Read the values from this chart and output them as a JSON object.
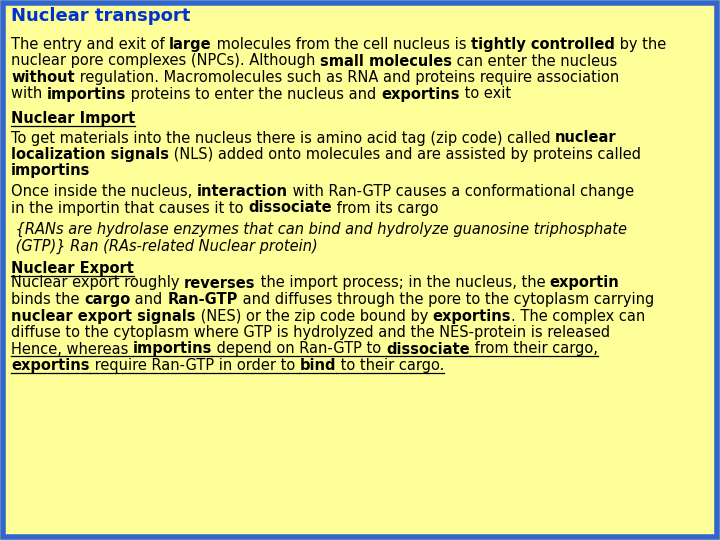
{
  "bg_color": "#FFFF99",
  "border_color": "#3366CC",
  "title_color": "#0033CC",
  "text_color": "#000000",
  "figsize": [
    7.2,
    5.4
  ],
  "dpi": 100,
  "title": "Nuclear transport",
  "para1_lines": [
    [
      {
        "text": "The entry and exit of ",
        "bold": false,
        "italic": false
      },
      {
        "text": "large",
        "bold": true,
        "italic": false
      },
      {
        "text": " molecules from the cell nucleus is ",
        "bold": false,
        "italic": false
      },
      {
        "text": "tightly controlled",
        "bold": true,
        "italic": false
      },
      {
        "text": " by the",
        "bold": false,
        "italic": false
      }
    ],
    [
      {
        "text": "nuclear pore complexes (NPCs). Although ",
        "bold": false,
        "italic": false
      },
      {
        "text": "small molecules",
        "bold": true,
        "italic": false
      },
      {
        "text": " can enter the nucleus",
        "bold": false,
        "italic": false
      }
    ],
    [
      {
        "text": "without",
        "bold": true,
        "italic": false
      },
      {
        "text": " regulation. Macromolecules such as RNA and proteins require association",
        "bold": false,
        "italic": false
      }
    ],
    [
      {
        "text": "with ",
        "bold": false,
        "italic": false
      },
      {
        "text": "importins",
        "bold": true,
        "italic": false
      },
      {
        "text": " proteins to enter the nucleus and ",
        "bold": false,
        "italic": false
      },
      {
        "text": "exportins",
        "bold": true,
        "italic": false
      },
      {
        "text": " to exit",
        "bold": false,
        "italic": false
      }
    ]
  ],
  "heading_import": [
    {
      "text": "Nuclear Import",
      "bold": true,
      "italic": false,
      "underline": true
    }
  ],
  "para2_lines": [
    [
      {
        "text": "To get materials into the nucleus there is amino acid tag (zip code) called ",
        "bold": false,
        "italic": false
      },
      {
        "text": "nuclear",
        "bold": true,
        "italic": false
      }
    ],
    [
      {
        "text": "localization signals",
        "bold": true,
        "italic": false
      },
      {
        "text": " (NLS) added onto molecules and are assisted by proteins called",
        "bold": false,
        "italic": false
      }
    ],
    [
      {
        "text": "importins",
        "bold": true,
        "italic": false
      }
    ]
  ],
  "para3_lines": [
    [
      {
        "text": "Once inside the nucleus, ",
        "bold": false,
        "italic": false
      },
      {
        "text": "interaction",
        "bold": true,
        "italic": false
      },
      {
        "text": " with Ran-GTP causes a conformational change",
        "bold": false,
        "italic": false
      }
    ],
    [
      {
        "text": "in the importin that causes it to ",
        "bold": false,
        "italic": false
      },
      {
        "text": "dissociate",
        "bold": true,
        "italic": false
      },
      {
        "text": " from its cargo",
        "bold": false,
        "italic": false
      }
    ]
  ],
  "para_italic_lines": [
    [
      {
        "text": " {RANs are hydrolase enzymes that can bind and hydrolyze guanosine triphosphate",
        "bold": false,
        "italic": true
      }
    ],
    [
      {
        "text": " (GTP)} Ran (RAs-related Nuclear protein)",
        "bold": false,
        "italic": true
      }
    ]
  ],
  "heading_export": [
    {
      "text": "Nuclear Export",
      "bold": true,
      "italic": false,
      "underline": true
    }
  ],
  "para4_lines": [
    [
      {
        "text": "Nuclear export roughly ",
        "bold": false,
        "italic": false
      },
      {
        "text": "reverses",
        "bold": true,
        "italic": false
      },
      {
        "text": " the import process; in the nucleus, the ",
        "bold": false,
        "italic": false
      },
      {
        "text": "exportin",
        "bold": true,
        "italic": false
      }
    ],
    [
      {
        "text": "binds the ",
        "bold": false,
        "italic": false
      },
      {
        "text": "cargo",
        "bold": true,
        "italic": false
      },
      {
        "text": " and ",
        "bold": false,
        "italic": false
      },
      {
        "text": "Ran-GTP",
        "bold": true,
        "italic": false
      },
      {
        "text": " and diffuses through the pore to the cytoplasm carrying",
        "bold": false,
        "italic": false
      }
    ],
    [
      {
        "text": "nuclear export signals",
        "bold": true,
        "italic": false
      },
      {
        "text": " (NES) or the zip code bound by ",
        "bold": false,
        "italic": false
      },
      {
        "text": "exportins",
        "bold": true,
        "italic": false
      },
      {
        "text": ". The complex can",
        "bold": false,
        "italic": false
      }
    ],
    [
      {
        "text": "diffuse to the cytoplasm where GTP is hydrolyzed and the NES-protein is released",
        "bold": false,
        "italic": false
      }
    ]
  ],
  "para5_lines": [
    [
      {
        "text": "Hence, whereas ",
        "bold": false,
        "italic": false,
        "underline": true
      },
      {
        "text": "importins",
        "bold": true,
        "italic": false,
        "underline": true
      },
      {
        "text": " depend on Ran-GTP to ",
        "bold": false,
        "italic": false,
        "underline": true
      },
      {
        "text": "dissociate",
        "bold": true,
        "italic": false,
        "underline": true
      },
      {
        "text": " from their cargo,",
        "bold": false,
        "italic": false,
        "underline": true
      }
    ],
    [
      {
        "text": "exportins",
        "bold": true,
        "italic": false,
        "underline": true
      },
      {
        "text": " require Ran-GTP in order to ",
        "bold": false,
        "italic": false,
        "underline": true
      },
      {
        "text": "bind",
        "bold": true,
        "italic": false,
        "underline": true
      },
      {
        "text": " to their cargo.",
        "bold": false,
        "italic": false,
        "underline": true
      }
    ]
  ]
}
